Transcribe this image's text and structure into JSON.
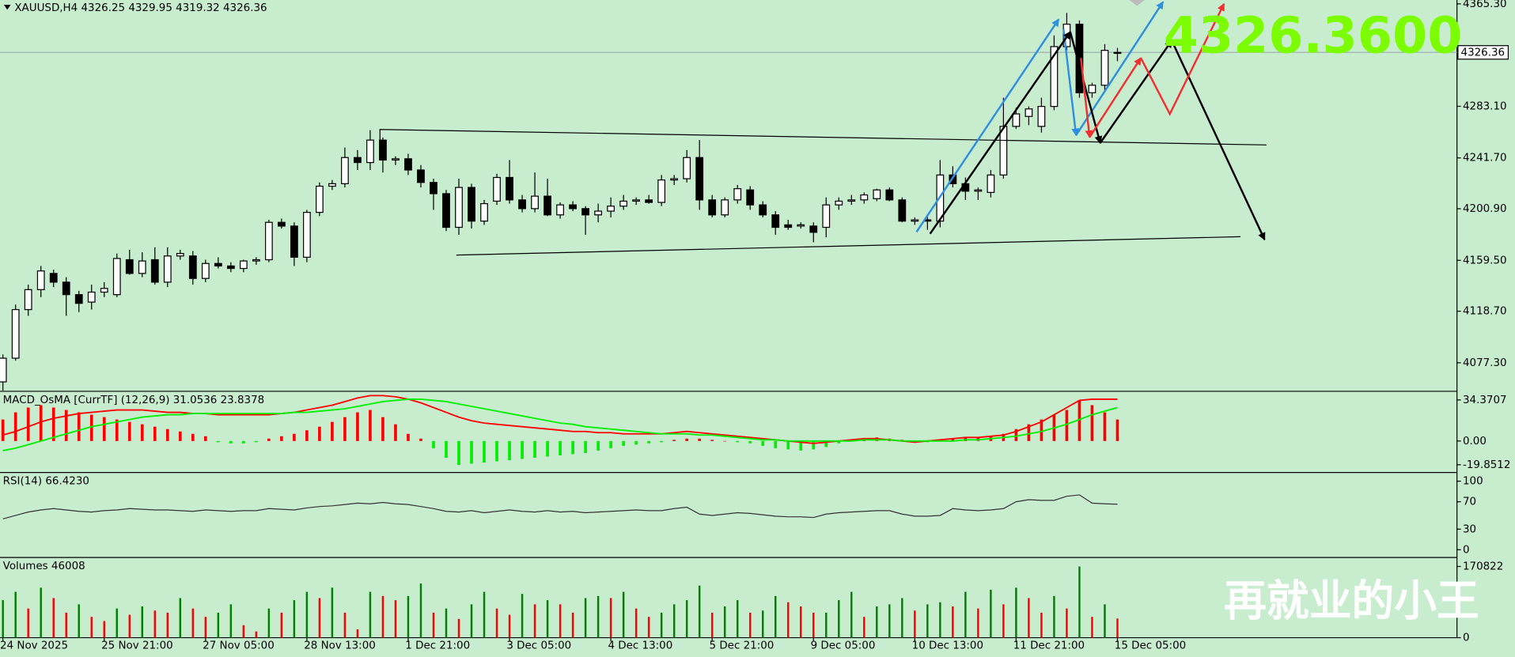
{
  "chart_data": [
    {
      "type": "candlestick",
      "title": "XAUUSD,H4  4326.25 4329.95 4319.32 4326.36",
      "up_color": "#ffffff",
      "down_color": "#000000",
      "categories": [
        "24 Nov 2025",
        null,
        null,
        null,
        null,
        null,
        null,
        null,
        "25 Nov 21:00",
        null,
        null,
        null,
        null,
        null,
        null,
        null,
        "27 Nov 05:00",
        null,
        null,
        null,
        null,
        null,
        null,
        null,
        "28 Nov 13:00",
        null,
        null,
        null,
        null,
        null,
        null,
        null,
        "1 Dec 21:00",
        null,
        null,
        null,
        null,
        null,
        null,
        null,
        "3 Dec 05:00",
        null,
        null,
        null,
        null,
        null,
        null,
        null,
        "4 Dec 13:00",
        null,
        null,
        null,
        null,
        null,
        null,
        null,
        "5 Dec 21:00",
        null,
        null,
        null,
        null,
        null,
        null,
        null,
        "9 Dec 05:00",
        null,
        null,
        null,
        null,
        null,
        null,
        null,
        "10 Dec 13:00",
        null,
        null,
        null,
        null,
        null,
        null,
        null,
        "11 Dec 21:00",
        null,
        null,
        null,
        null,
        null,
        null,
        null,
        "15 Dec 05:00"
      ],
      "open": [
        4062,
        4081,
        4120,
        4136,
        4149,
        4142,
        4132,
        4126,
        4134,
        4132,
        4160,
        4149,
        4160,
        4142,
        4163,
        4163,
        4145,
        4157,
        4155,
        4153,
        4159,
        4160,
        4190,
        4187,
        4162,
        4198,
        4219,
        4221,
        4242,
        4238,
        4256,
        4240,
        4241,
        4232,
        4222,
        4213,
        4186,
        4218,
        4191,
        4207,
        4226,
        4208,
        4201,
        4211,
        4196,
        4204,
        4201,
        4196,
        4199,
        4203,
        4207,
        4208,
        4206,
        4224,
        4225,
        4242,
        4208,
        4196,
        4208,
        4216,
        4204,
        4196,
        4188,
        4187,
        4187,
        4186,
        4204,
        4207,
        4208,
        4209,
        4216,
        4208,
        4191,
        4192,
        4191,
        4228,
        4221,
        4215,
        4214,
        4228,
        4267,
        4275,
        4267,
        4283,
        4331,
        4349,
        4294,
        4300,
        4326.25
      ],
      "high": [
        4084,
        4124,
        4140,
        4155,
        4152,
        4146,
        4135,
        4140,
        4142,
        4165,
        4168,
        4166,
        4170,
        4170,
        4168,
        4167,
        4160,
        4162,
        4158,
        4160,
        4162,
        4192,
        4193,
        4190,
        4200,
        4222,
        4224,
        4250,
        4248,
        4264,
        4258,
        4243,
        4245,
        4236,
        4225,
        4216,
        4225,
        4221,
        4208,
        4229,
        4240,
        4212,
        4230,
        4225,
        4206,
        4207,
        4203,
        4205,
        4210,
        4212,
        4210,
        4212,
        4228,
        4228,
        4248,
        4256,
        4212,
        4210,
        4220,
        4219,
        4207,
        4199,
        4192,
        4190,
        4190,
        4210,
        4210,
        4212,
        4214,
        4217,
        4218,
        4210,
        4194,
        4196,
        4240,
        4235,
        4226,
        4218,
        4232,
        4290,
        4282,
        4283,
        4290,
        4340,
        4358,
        4352,
        4302,
        4333,
        4329.95
      ],
      "low": [
        4055,
        4079,
        4115,
        4130,
        4138,
        4115,
        4118,
        4120,
        4130,
        4130,
        4148,
        4146,
        4140,
        4138,
        4160,
        4140,
        4142,
        4153,
        4150,
        4150,
        4156,
        4158,
        4185,
        4155,
        4158,
        4195,
        4216,
        4218,
        4232,
        4232,
        4230,
        4236,
        4228,
        4218,
        4200,
        4183,
        4180,
        4185,
        4188,
        4204,
        4205,
        4198,
        4198,
        4195,
        4193,
        4199,
        4180,
        4190,
        4194,
        4200,
        4204,
        4205,
        4203,
        4220,
        4222,
        4200,
        4194,
        4194,
        4205,
        4200,
        4194,
        4180,
        4184,
        4185,
        4174,
        4178,
        4200,
        4204,
        4205,
        4207,
        4207,
        4190,
        4188,
        4184,
        4186,
        4218,
        4208,
        4208,
        4210,
        4225,
        4265,
        4268,
        4262,
        4280,
        4328,
        4290,
        4290,
        4296,
        4319.32
      ],
      "close": [
        4081,
        4120,
        4136,
        4151,
        4142,
        4132,
        4125,
        4134,
        4137,
        4161,
        4149,
        4159,
        4142,
        4163,
        4165,
        4145,
        4157,
        4155,
        4153,
        4159,
        4160,
        4190,
        4187,
        4162,
        4198,
        4219,
        4221,
        4242,
        4238,
        4256,
        4240,
        4241,
        4232,
        4222,
        4213,
        4186,
        4218,
        4191,
        4205,
        4226,
        4208,
        4201,
        4211,
        4196,
        4204,
        4201,
        4196,
        4199,
        4203,
        4207,
        4208,
        4206,
        4224,
        4225,
        4242,
        4208,
        4196,
        4208,
        4217,
        4204,
        4196,
        4186,
        4186,
        4188,
        4182,
        4204,
        4207,
        4208,
        4212,
        4216,
        4208,
        4191,
        4192,
        4191,
        4228,
        4221,
        4215,
        4216,
        4228,
        4267,
        4277,
        4281,
        4283,
        4331,
        4349,
        4294,
        4300,
        4328,
        4326.36
      ],
      "current_price": 4326.36,
      "annotation": "4326.3600",
      "ylim": [
        4055.2,
        4368.4
      ],
      "yticks": [
        {
          "value": 4365.3,
          "label": "4365.30"
        },
        {
          "value": 4283.1,
          "label": "4283.10"
        },
        {
          "value": 4241.7,
          "label": "4241.70"
        },
        {
          "value": 4200.9,
          "label": "4200.90"
        },
        {
          "value": 4159.5,
          "label": "4159.50"
        },
        {
          "value": 4118.7,
          "label": "4118.70"
        },
        {
          "value": 4077.3,
          "label": "4077.30"
        }
      ]
    },
    {
      "type": "macd",
      "title": "MACD_OsMA [CurrTF] (12,26,9) 31.0536 23.8378",
      "pos_color": "#ff0000",
      "neg_color": "#00ee00",
      "values": [
        18,
        24,
        28,
        30,
        28,
        26,
        24,
        22,
        20,
        18,
        16,
        14,
        12,
        10,
        8,
        6,
        4,
        -1,
        -2,
        -2,
        -1,
        2,
        4,
        6,
        9,
        12,
        16,
        20,
        24,
        26,
        20,
        14,
        6,
        2,
        -6,
        -14,
        -20,
        -19,
        -18,
        -17,
        -16,
        -15,
        -14,
        -13,
        -12,
        -11,
        -10,
        -8,
        -6,
        -4,
        -3,
        -2,
        -1,
        1,
        2,
        2,
        1,
        0,
        -1,
        -2,
        -4,
        -6,
        -7,
        -8,
        -7,
        -5,
        -2,
        1,
        2,
        3,
        2,
        1,
        0,
        -1,
        1,
        2,
        3,
        3,
        4,
        6,
        10,
        14,
        18,
        22,
        26,
        34,
        30,
        24,
        18
      ],
      "series": [
        {
          "color": "#ff0000",
          "values": [
            5,
            8,
            12,
            16,
            19,
            21,
            23,
            24,
            25,
            26,
            26,
            26,
            25,
            24,
            24,
            23,
            23,
            22,
            22,
            22,
            22,
            22,
            23,
            24,
            26,
            28,
            30,
            33,
            36,
            38,
            38,
            37,
            35,
            32,
            28,
            24,
            20,
            17,
            15,
            14,
            13,
            12,
            11,
            10,
            9,
            8,
            8,
            7,
            7,
            6,
            6,
            6,
            6,
            7,
            8,
            7,
            6,
            5,
            4,
            3,
            2,
            1,
            0,
            -1,
            -2,
            -1,
            0,
            1,
            2,
            2,
            1,
            0,
            -1,
            0,
            1,
            2,
            3,
            3,
            4,
            5,
            8,
            12,
            16,
            22,
            28,
            34,
            35,
            35,
            35
          ]
        },
        {
          "color": "#00ee00",
          "values": [
            -8,
            -6,
            -3,
            0,
            3,
            6,
            9,
            12,
            14,
            16,
            18,
            20,
            21,
            22,
            22,
            23,
            23,
            23,
            23,
            23,
            23,
            23,
            23,
            24,
            24,
            25,
            26,
            27,
            29,
            31,
            33,
            34,
            35,
            35,
            34,
            33,
            31,
            29,
            27,
            25,
            23,
            21,
            19,
            17,
            15,
            14,
            12,
            11,
            10,
            9,
            8,
            7,
            6,
            6,
            6,
            5,
            5,
            4,
            3,
            2,
            1,
            1,
            0,
            0,
            0,
            0,
            0,
            0,
            1,
            1,
            1,
            0,
            0,
            0,
            0,
            0,
            1,
            1,
            2,
            3,
            4,
            6,
            8,
            11,
            14,
            18,
            22,
            25,
            28
          ]
        }
      ],
      "ylim": [
        -25.5,
        40.8
      ],
      "yticks": [
        34.3707,
        {
          "value": 0,
          "label": "0.00"
        },
        -19.8512
      ]
    },
    {
      "type": "line",
      "title": "RSI(14) 66.4230",
      "color": "#333333",
      "values": [
        45,
        50,
        55,
        58,
        60,
        58,
        56,
        55,
        57,
        58,
        60,
        59,
        58,
        58,
        57,
        56,
        58,
        57,
        56,
        57,
        57,
        60,
        59,
        58,
        61,
        63,
        64,
        66,
        68,
        67,
        69,
        67,
        66,
        63,
        60,
        56,
        55,
        57,
        54,
        56,
        58,
        56,
        55,
        57,
        55,
        56,
        54,
        55,
        56,
        57,
        58,
        57,
        57,
        60,
        62,
        52,
        50,
        52,
        54,
        53,
        51,
        49,
        48,
        48,
        47,
        52,
        54,
        55,
        56,
        57,
        57,
        52,
        49,
        49,
        50,
        60,
        58,
        57,
        58,
        60,
        70,
        73,
        72,
        72,
        78,
        80,
        68,
        67,
        66.423
      ],
      "ylim": [
        -9.9,
        111.3
      ],
      "yticks": [
        100,
        70,
        30,
        0
      ]
    },
    {
      "type": "bar",
      "title": "Volumes 46008",
      "up_color": "#008000",
      "down_color": "#ff0000",
      "values": [
        90000,
        110000,
        70000,
        120000,
        95000,
        60000,
        80000,
        50000,
        40000,
        70000,
        55000,
        75000,
        65000,
        60000,
        95000,
        70000,
        50000,
        60000,
        80000,
        30000,
        15000,
        70000,
        60000,
        90000,
        110000,
        95000,
        120000,
        60000,
        20000,
        110000,
        100000,
        90000,
        100000,
        130000,
        60000,
        70000,
        45000,
        80000,
        110000,
        70000,
        55000,
        105000,
        80000,
        90000,
        80000,
        60000,
        95000,
        100000,
        95000,
        110000,
        70000,
        50000,
        60000,
        80000,
        90000,
        125000,
        60000,
        75000,
        90000,
        60000,
        65000,
        100000,
        85000,
        75000,
        60000,
        60000,
        90000,
        110000,
        50000,
        75000,
        80000,
        95000,
        65000,
        80000,
        85000,
        75000,
        110000,
        70000,
        115000,
        80000,
        120000,
        95000,
        60000,
        100000,
        70000,
        170822,
        50000,
        80000,
        46008
      ],
      "ylim": [
        0,
        190070
      ],
      "yticks": [
        170822,
        0
      ]
    }
  ],
  "watermark": "再就业的小王"
}
